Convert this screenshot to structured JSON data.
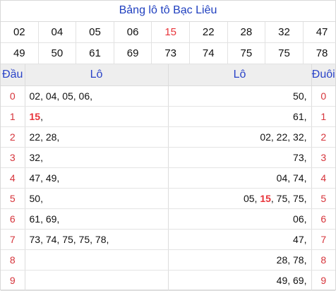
{
  "title": "Bảng lô tô Bạc Liêu",
  "numbers": [
    [
      "02",
      "04",
      "05",
      "06",
      "15",
      "22",
      "28",
      "32",
      "47"
    ],
    [
      "49",
      "50",
      "61",
      "69",
      "73",
      "74",
      "75",
      "75",
      "78"
    ]
  ],
  "highlight_number": "15",
  "headers": {
    "dau": "Đầu",
    "lo_left": "Lô",
    "lo_right": "Lô",
    "duoi": "Đuôi"
  },
  "rows": [
    {
      "dau": "0",
      "left": [
        [
          "02, 04, 05, 06,",
          false
        ]
      ],
      "right": [
        [
          "50,",
          false
        ]
      ],
      "duoi": "0"
    },
    {
      "dau": "1",
      "left": [
        [
          "15",
          true
        ],
        [
          ",",
          false
        ]
      ],
      "right": [
        [
          "61,",
          false
        ]
      ],
      "duoi": "1"
    },
    {
      "dau": "2",
      "left": [
        [
          "22, 28,",
          false
        ]
      ],
      "right": [
        [
          "02, 22, 32,",
          false
        ]
      ],
      "duoi": "2"
    },
    {
      "dau": "3",
      "left": [
        [
          "32,",
          false
        ]
      ],
      "right": [
        [
          "73,",
          false
        ]
      ],
      "duoi": "3"
    },
    {
      "dau": "4",
      "left": [
        [
          "47, 49,",
          false
        ]
      ],
      "right": [
        [
          "04, 74,",
          false
        ]
      ],
      "duoi": "4"
    },
    {
      "dau": "5",
      "left": [
        [
          "50,",
          false
        ]
      ],
      "right": [
        [
          "05, ",
          false
        ],
        [
          "15",
          true
        ],
        [
          ", 75, 75,",
          false
        ]
      ],
      "duoi": "5"
    },
    {
      "dau": "6",
      "left": [
        [
          "61, 69,",
          false
        ]
      ],
      "right": [
        [
          "06,",
          false
        ]
      ],
      "duoi": "6"
    },
    {
      "dau": "7",
      "left": [
        [
          "73, 74, 75, 75, 78,",
          false
        ]
      ],
      "right": [
        [
          "47,",
          false
        ]
      ],
      "duoi": "7"
    },
    {
      "dau": "8",
      "left": [],
      "right": [
        [
          "28, 78,",
          false
        ]
      ],
      "duoi": "8"
    },
    {
      "dau": "9",
      "left": [],
      "right": [
        [
          "49, 69,",
          false
        ]
      ],
      "duoi": "9"
    }
  ],
  "colors": {
    "accent": "#1f3fbf",
    "highlight": "#e8343a",
    "header_bg": "#eeeeee"
  }
}
